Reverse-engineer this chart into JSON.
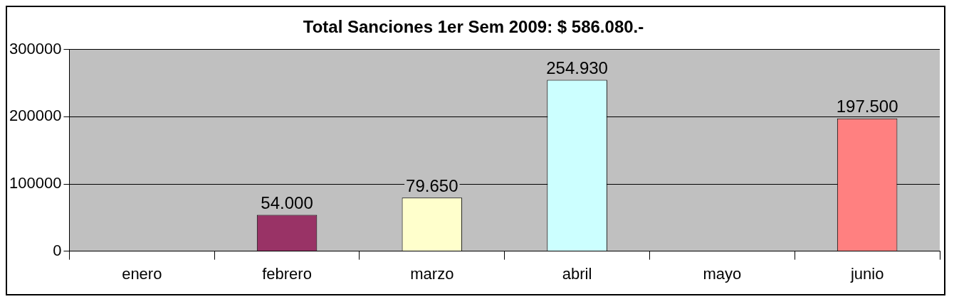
{
  "chart_data": {
    "type": "bar",
    "title": "Total Sanciones 1er Sem 2009: $ 586.080.-",
    "categories": [
      "enero",
      "febrero",
      "marzo",
      "abril",
      "mayo",
      "junio"
    ],
    "values": [
      null,
      54000,
      79650,
      254930,
      null,
      197500
    ],
    "colors": [
      "#993366",
      "#993366",
      "#ffffcc",
      "#ccffff",
      "#ccffff",
      "#ff8080"
    ],
    "value_labels": [
      null,
      "54.000",
      "79.650",
      "254.930",
      null,
      "197.500"
    ],
    "ylim": [
      0,
      300000
    ],
    "yticks": [
      0,
      100000,
      200000,
      300000
    ],
    "grid": "y",
    "legend": false
  }
}
